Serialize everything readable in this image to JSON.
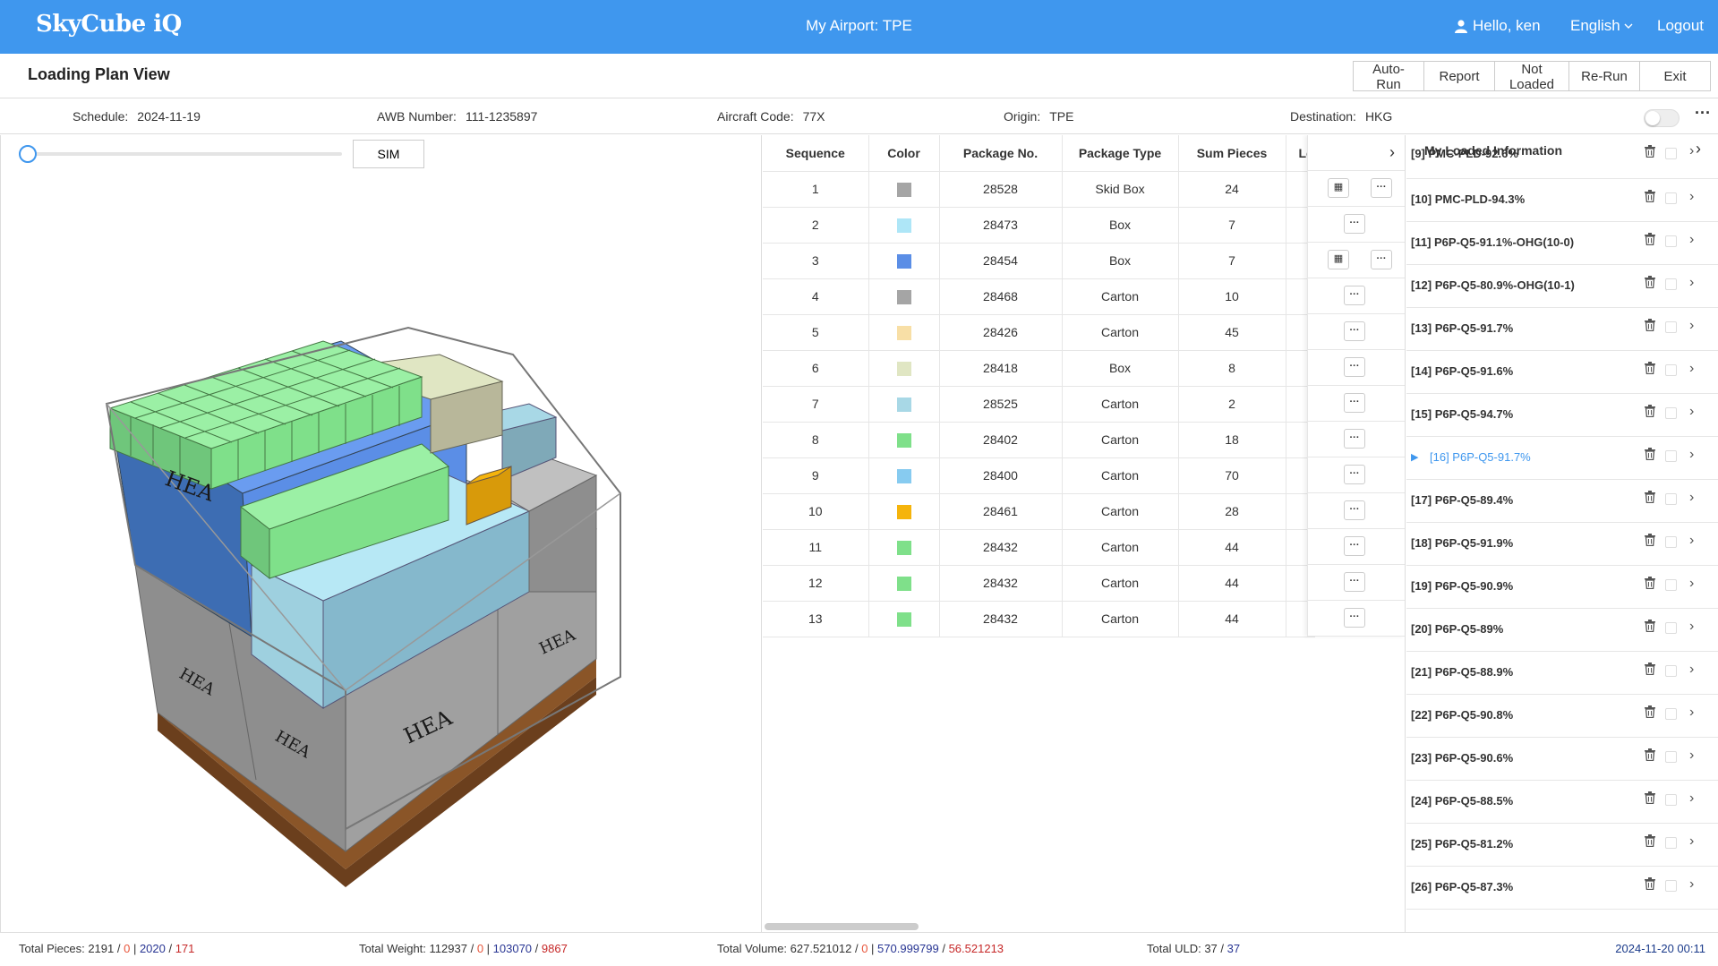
{
  "header": {
    "logo": "SkyCube iQ",
    "airport": "My Airport: TPE",
    "greeting": "Hello, ken",
    "language": "English",
    "logout": "Logout"
  },
  "page": {
    "title": "Loading Plan View",
    "actions": {
      "auto_run": "Auto-Run",
      "report": "Report",
      "not_loaded": "Not Loaded",
      "re_run": "Re-Run",
      "exit": "Exit"
    }
  },
  "info": {
    "schedule_label": "Schedule:",
    "schedule": "2024-11-19",
    "awb_label": "AWB Number:",
    "awb": "111-1235897",
    "aircraft_label": "Aircraft Code:",
    "aircraft": "77X",
    "origin_label": "Origin:",
    "origin": "TPE",
    "destination_label": "Destination:",
    "destination": "HKG"
  },
  "viewer": {
    "sim_label": "SIM",
    "slider_value": 0,
    "box_labels": [
      "HEA",
      "HEA",
      "HEA",
      "HEA",
      "HEA"
    ]
  },
  "table": {
    "headers": {
      "sequence": "Sequence",
      "color": "Color",
      "package_no": "Package No.",
      "package_type": "Package Type",
      "sum_pieces": "Sum Pieces",
      "lo": "Lo"
    },
    "rows": [
      {
        "seq": "1",
        "color": "#a5a5a5",
        "pkg": "28528",
        "type": "Skid Box",
        "sum": "24"
      },
      {
        "seq": "2",
        "color": "#aee6f7",
        "pkg": "28473",
        "type": "Box",
        "sum": "7"
      },
      {
        "seq": "3",
        "color": "#5b8ee6",
        "pkg": "28454",
        "type": "Box",
        "sum": "7"
      },
      {
        "seq": "4",
        "color": "#a5a5a5",
        "pkg": "28468",
        "type": "Carton",
        "sum": "10"
      },
      {
        "seq": "5",
        "color": "#f8dfa6",
        "pkg": "28426",
        "type": "Carton",
        "sum": "45"
      },
      {
        "seq": "6",
        "color": "#e0e6c3",
        "pkg": "28418",
        "type": "Box",
        "sum": "8"
      },
      {
        "seq": "7",
        "color": "#a8d8e6",
        "pkg": "28525",
        "type": "Carton",
        "sum": "2"
      },
      {
        "seq": "8",
        "color": "#7fe08a",
        "pkg": "28402",
        "type": "Carton",
        "sum": "18"
      },
      {
        "seq": "9",
        "color": "#87cbf0",
        "pkg": "28400",
        "type": "Carton",
        "sum": "70"
      },
      {
        "seq": "10",
        "color": "#f5b40c",
        "pkg": "28461",
        "type": "Carton",
        "sum": "28"
      },
      {
        "seq": "11",
        "color": "#7fe08a",
        "pkg": "28432",
        "type": "Carton",
        "sum": "44"
      },
      {
        "seq": "12",
        "color": "#7fe08a",
        "pkg": "28432",
        "type": "Carton",
        "sum": "44"
      },
      {
        "seq": "13",
        "color": "#7fe08a",
        "pkg": "28432",
        "type": "Carton",
        "sum": "44"
      }
    ],
    "row_actions": [
      "grid+more",
      "more",
      "grid+more",
      "more",
      "more",
      "more",
      "more",
      "more",
      "more",
      "more",
      "more",
      "more",
      "more"
    ]
  },
  "loaded": {
    "title": "My Loaded Information",
    "items": [
      {
        "label": "[9] PMC-PLD-92.6%"
      },
      {
        "label": "[10] PMC-PLD-94.3%"
      },
      {
        "label": "[11] P6P-Q5-91.1%-OHG(10-0)"
      },
      {
        "label": "[12] P6P-Q5-80.9%-OHG(10-1)"
      },
      {
        "label": "[13] P6P-Q5-91.7%"
      },
      {
        "label": "[14] P6P-Q5-91.6%"
      },
      {
        "label": "[15] P6P-Q5-94.7%"
      },
      {
        "label": "[16] P6P-Q5-91.7%",
        "active": true
      },
      {
        "label": "[17] P6P-Q5-89.4%"
      },
      {
        "label": "[18] P6P-Q5-91.9%"
      },
      {
        "label": "[19] P6P-Q5-90.9%"
      },
      {
        "label": "[20] P6P-Q5-89%"
      },
      {
        "label": "[21] P6P-Q5-88.9%"
      },
      {
        "label": "[22] P6P-Q5-90.8%"
      },
      {
        "label": "[23] P6P-Q5-90.6%"
      },
      {
        "label": "[24] P6P-Q5-88.5%"
      },
      {
        "label": "[25] P6P-Q5-81.2%"
      },
      {
        "label": "[26] P6P-Q5-87.3%"
      }
    ]
  },
  "footer": {
    "pieces_label": "Total Pieces:",
    "pieces_total": "2191",
    "pieces_zero": "0",
    "pieces_loaded": "2020",
    "pieces_left": "171",
    "weight_label": "Total Weight:",
    "weight_total": "112937",
    "weight_zero": "0",
    "weight_loaded": "103070",
    "weight_left": "9867",
    "volume_label": "Total Volume:",
    "volume_total": "627.521012",
    "volume_zero": "0",
    "volume_loaded": "570.999799",
    "volume_left": "56.521213",
    "uld_label": "Total ULD:",
    "uld_used": "37",
    "uld_total": "37",
    "datetime": "2024-11-20 00:11"
  },
  "colors": {
    "brand": "#3f97ee",
    "active_text": "#3f97ee"
  }
}
